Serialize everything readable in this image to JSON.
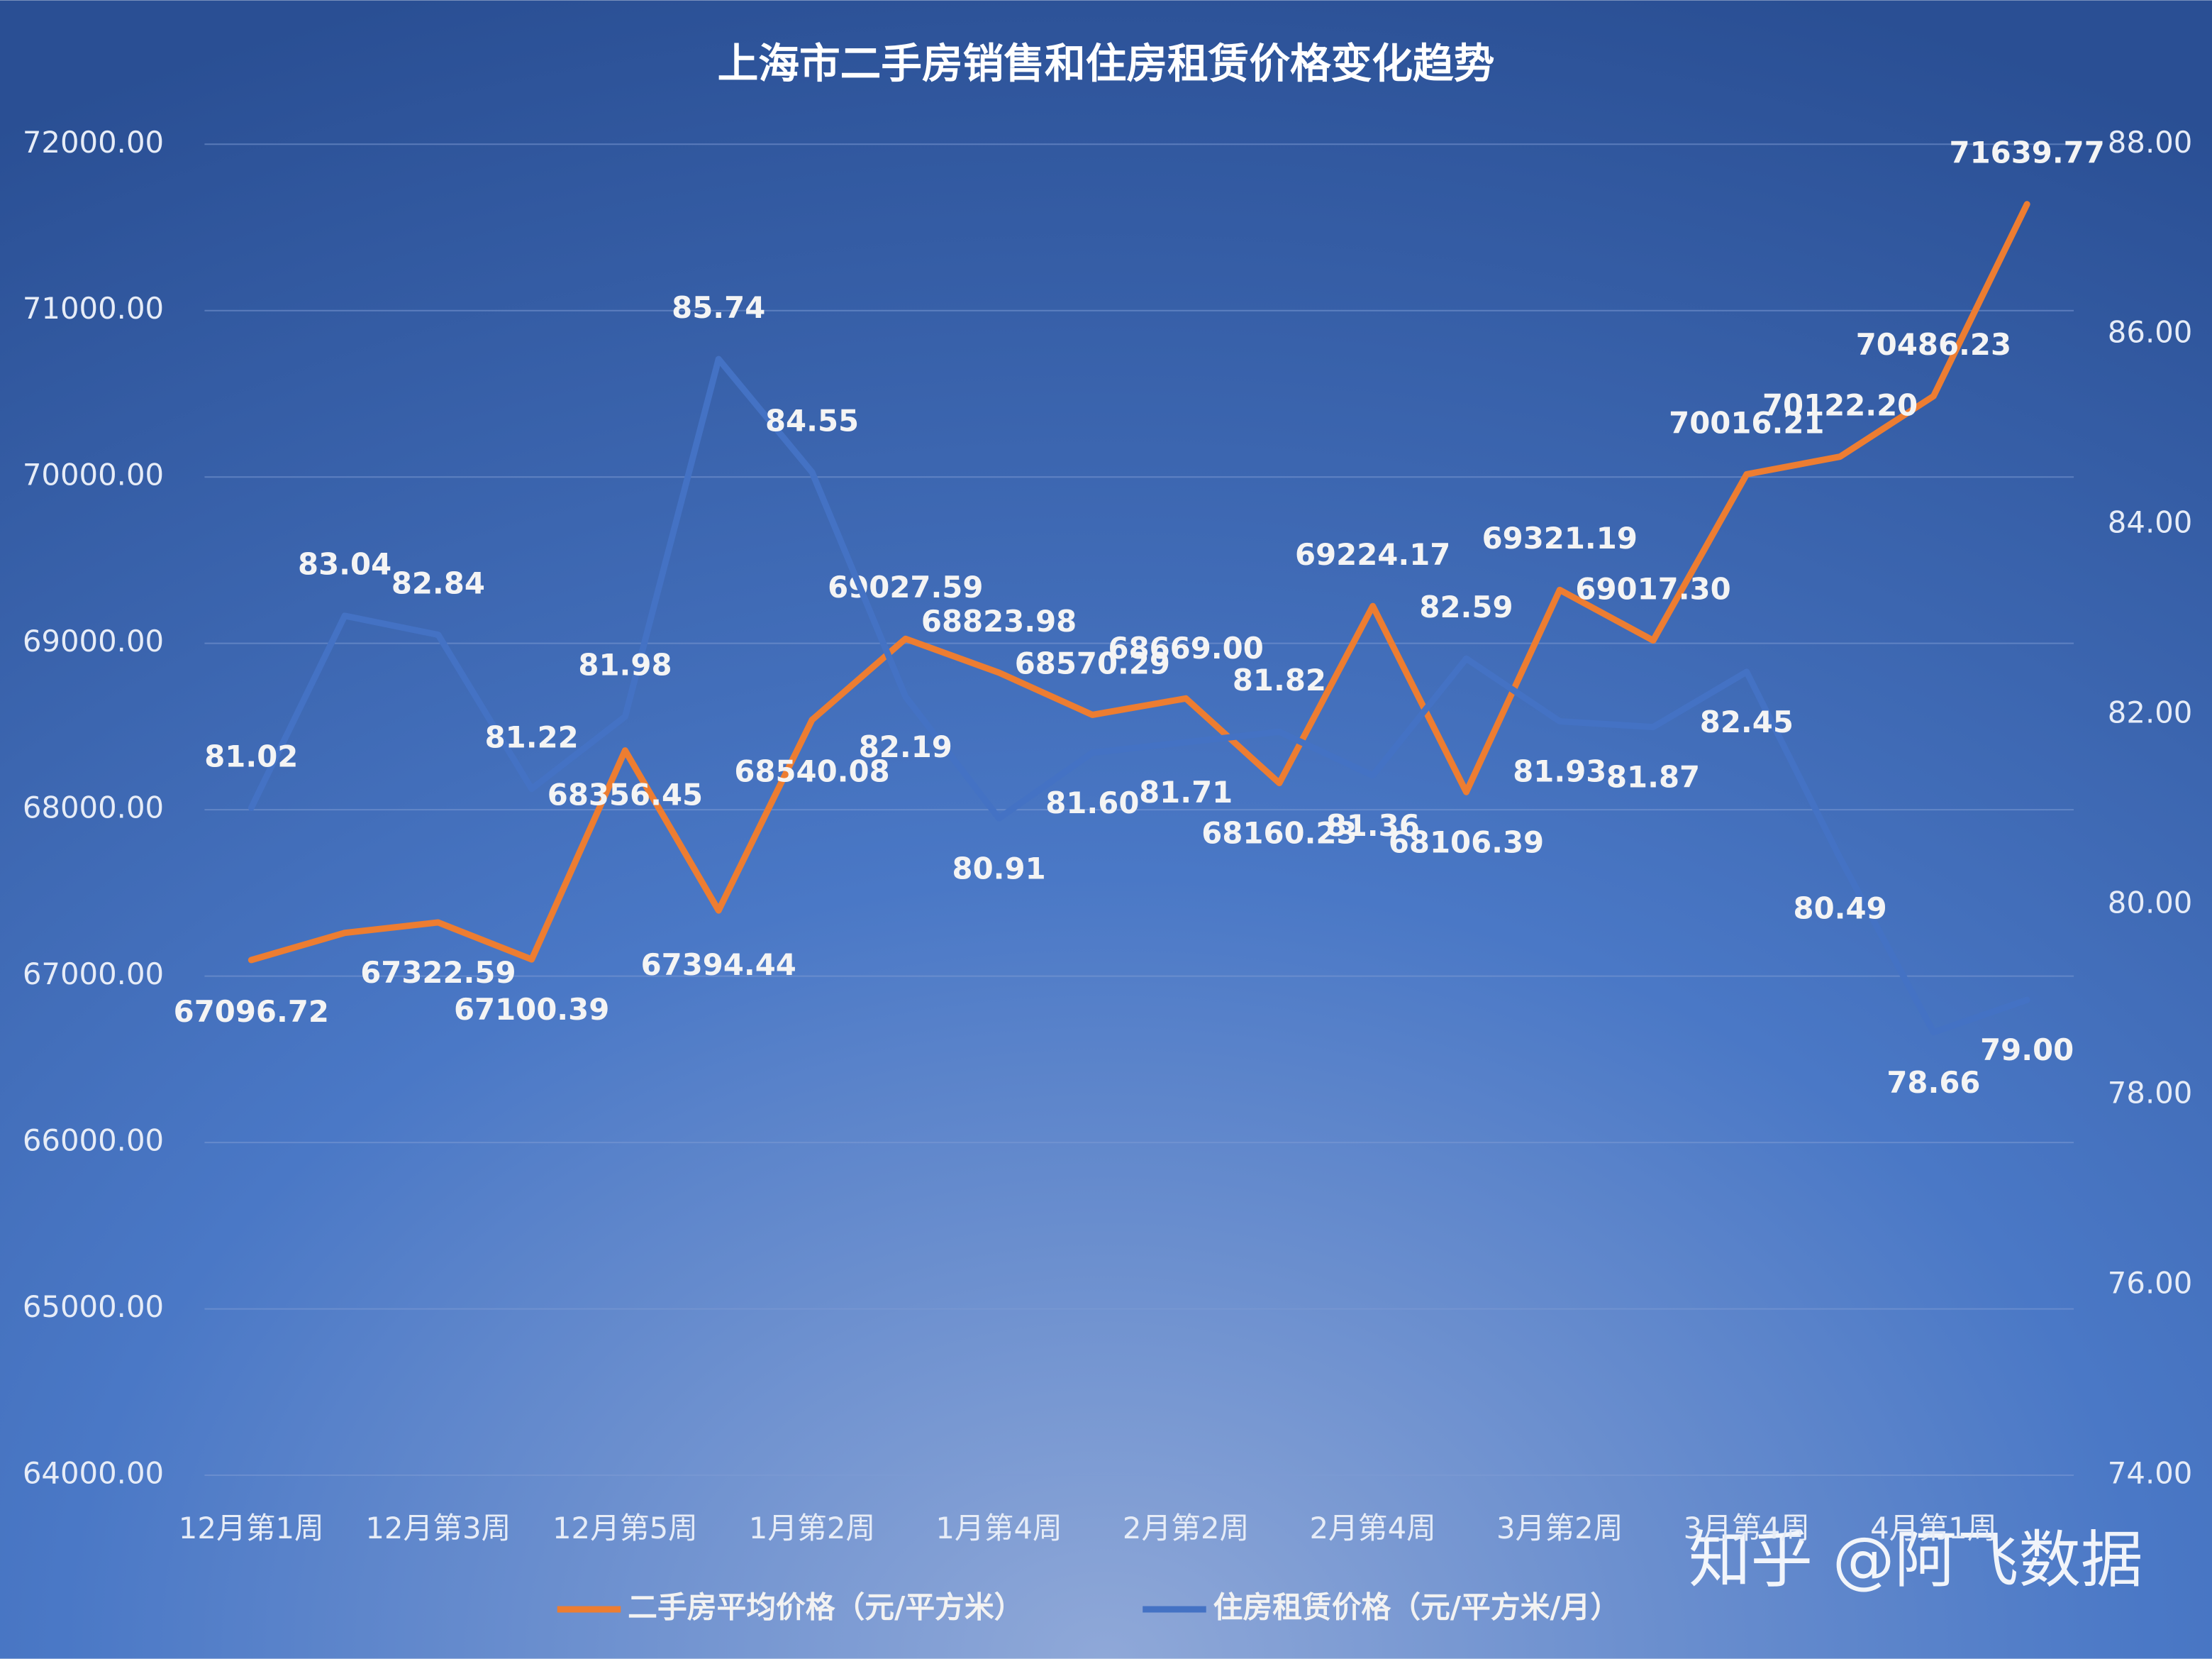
{
  "chart_data": {
    "type": "line",
    "title": "上海市二手房销售和住房租赁价格变化趋势",
    "categories": [
      "12月第1周",
      null,
      "12月第3周",
      null,
      "12月第5周",
      null,
      "1月第2周",
      null,
      "1月第4周",
      null,
      "2月第2周",
      null,
      "2月第4周",
      null,
      "3月第2周",
      null,
      "3月第4周",
      null,
      "4月第1周",
      null
    ],
    "series": [
      {
        "name": "二手房平均价格（元/平方米）",
        "color": "#ed7d31",
        "values": [
          67096.72,
          67260,
          67322.59,
          67100.39,
          68356.45,
          67394.44,
          68540.08,
          69027.59,
          68823.98,
          68570.29,
          68669.0,
          68160.23,
          69224.17,
          68106.39,
          69321.19,
          69017.3,
          70016.21,
          70122.2,
          70486.23,
          71639.77
        ],
        "value_labels": [
          "67096.72",
          null,
          "67322.59",
          "67100.39",
          "68356.45",
          "67394.44",
          "68540.08",
          "69027.59",
          "68823.98",
          "68570.29",
          "68669.00",
          "68160.23",
          "69224.17",
          "68106.39",
          "69321.19",
          "69017.30",
          "70016.21",
          "70122.20",
          "70486.23",
          "71639.77"
        ]
      },
      {
        "name": "住房租赁价格（元/平方米/月）",
        "color": "#4472c4",
        "axis": "y2",
        "values": [
          81.02,
          83.04,
          82.84,
          81.22,
          81.98,
          85.74,
          84.55,
          82.19,
          80.91,
          81.6,
          81.71,
          81.82,
          81.36,
          82.59,
          81.93,
          81.87,
          82.45,
          80.49,
          78.66,
          79.0
        ],
        "value_labels": [
          "81.02",
          "83.04",
          "82.84",
          "81.22",
          "81.98",
          "85.74",
          "84.55",
          "82.19",
          "80.91",
          "81.60",
          "81.71",
          "81.82",
          "81.36",
          "82.59",
          "81.93",
          "81.87",
          "82.45",
          "80.49",
          "78.66",
          "79.00"
        ]
      }
    ],
    "ylim": [
      64000,
      72000
    ],
    "yticks": [
      {
        "value": 64000,
        "label": "64000.00"
      },
      {
        "value": 65000,
        "label": "65000.00"
      },
      {
        "value": 66000,
        "label": "66000.00"
      },
      {
        "value": 67000,
        "label": "67000.00"
      },
      {
        "value": 68000,
        "label": "68000.00"
      },
      {
        "value": 69000,
        "label": "69000.00"
      },
      {
        "value": 70000,
        "label": "70000.00"
      },
      {
        "value": 71000,
        "label": "71000.00"
      },
      {
        "value": 72000,
        "label": "72000.00"
      }
    ],
    "y2lim": [
      74,
      88
    ],
    "y2ticks": [
      {
        "value": 74,
        "label": "74.00"
      },
      {
        "value": 76,
        "label": "76.00"
      },
      {
        "value": 78,
        "label": "78.00"
      },
      {
        "value": 80,
        "label": "80.00"
      },
      {
        "value": 82,
        "label": "82.00"
      },
      {
        "value": 84,
        "label": "84.00"
      },
      {
        "value": 86,
        "label": "86.00"
      },
      {
        "value": 88,
        "label": "88.00"
      }
    ],
    "grid": true,
    "legend": "bottom",
    "watermark": "知乎 @阿飞数据"
  }
}
